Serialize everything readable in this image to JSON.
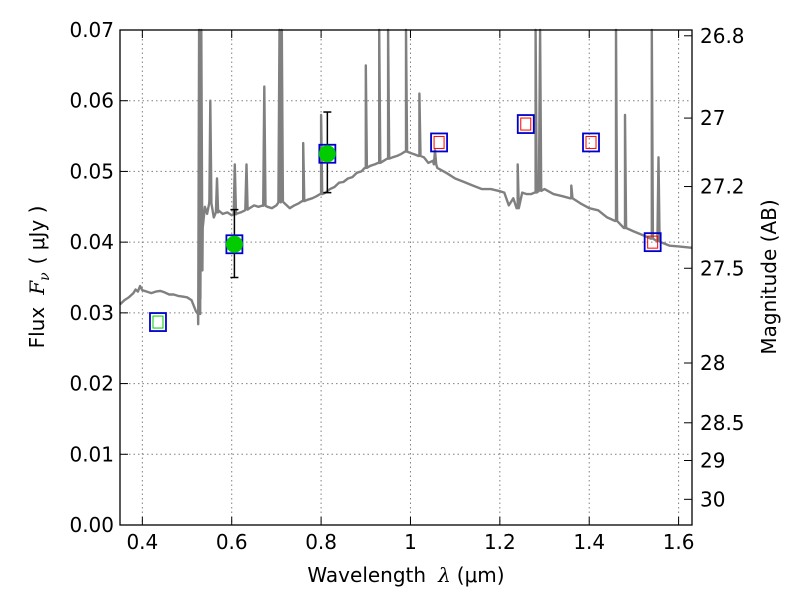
{
  "chart_data": {
    "type": "scatter",
    "xlabel_text": "Wavelength",
    "xlabel_symbol": "λ",
    "xlabel_unit": "(μm)",
    "ylabel_text": "Flux",
    "ylabel_symbol": "F",
    "ylabel_subscript": "ν",
    "ylabel_unit": "( μJy )",
    "y2label": "Magnitude (AB)",
    "xlim": [
      0.35,
      1.63
    ],
    "ylim": [
      0.0,
      0.07
    ],
    "grid": true,
    "x_ticks": [
      {
        "value": 0.4,
        "label": "0.4"
      },
      {
        "value": 0.6,
        "label": "0.6"
      },
      {
        "value": 0.8,
        "label": "0.8"
      },
      {
        "value": 1.0,
        "label": "1"
      },
      {
        "value": 1.2,
        "label": "1.2"
      },
      {
        "value": 1.4,
        "label": "1.4"
      },
      {
        "value": 1.6,
        "label": "1.6"
      }
    ],
    "y_ticks": [
      {
        "value": 0.0,
        "label": "0.00"
      },
      {
        "value": 0.01,
        "label": "0.01"
      },
      {
        "value": 0.02,
        "label": "0.02"
      },
      {
        "value": 0.03,
        "label": "0.03"
      },
      {
        "value": 0.04,
        "label": "0.04"
      },
      {
        "value": 0.05,
        "label": "0.05"
      },
      {
        "value": 0.06,
        "label": "0.06"
      },
      {
        "value": 0.07,
        "label": "0.07"
      }
    ],
    "y2_ticks": [
      {
        "mag": 26.8,
        "label": "26.8"
      },
      {
        "mag": 27.0,
        "label": "27"
      },
      {
        "mag": 27.2,
        "label": "27.2"
      },
      {
        "mag": 27.5,
        "label": "27.5"
      },
      {
        "mag": 28.0,
        "label": "28"
      },
      {
        "mag": 28.5,
        "label": "28.5"
      },
      {
        "mag": 29.0,
        "label": "29"
      },
      {
        "mag": 30.0,
        "label": "30"
      }
    ],
    "colors": {
      "spectrum": "#808080",
      "model_box": "#0000cc",
      "upper_limit": "#ff0000",
      "detection": "#00cc00",
      "errorbar": "#000000",
      "grid": "#808080"
    },
    "spectrum": [
      [
        0.35,
        0.0312
      ],
      [
        0.36,
        0.0318
      ],
      [
        0.37,
        0.0322
      ],
      [
        0.38,
        0.0328
      ],
      [
        0.385,
        0.0333
      ],
      [
        0.39,
        0.033
      ],
      [
        0.395,
        0.0338
      ],
      [
        0.4,
        0.0332
      ],
      [
        0.41,
        0.033
      ],
      [
        0.42,
        0.0328
      ],
      [
        0.43,
        0.033
      ],
      [
        0.44,
        0.0331
      ],
      [
        0.45,
        0.0329
      ],
      [
        0.46,
        0.0326
      ],
      [
        0.47,
        0.0326
      ],
      [
        0.48,
        0.0324
      ],
      [
        0.49,
        0.0323
      ],
      [
        0.5,
        0.0322
      ],
      [
        0.51,
        0.0318
      ],
      [
        0.52,
        0.0302
      ],
      [
        0.525,
        0.0284
      ],
      [
        0.53,
        0.032
      ],
      [
        0.535,
        0.042
      ],
      [
        0.54,
        0.045
      ],
      [
        0.545,
        0.044
      ],
      [
        0.55,
        0.046
      ],
      [
        0.56,
        0.0435
      ],
      [
        0.57,
        0.0445
      ],
      [
        0.58,
        0.044
      ],
      [
        0.59,
        0.0442
      ],
      [
        0.6,
        0.0438
      ],
      [
        0.61,
        0.044
      ],
      [
        0.62,
        0.0442
      ],
      [
        0.63,
        0.0445
      ],
      [
        0.64,
        0.0448
      ],
      [
        0.65,
        0.0452
      ],
      [
        0.66,
        0.045
      ],
      [
        0.67,
        0.0452
      ],
      [
        0.68,
        0.045
      ],
      [
        0.69,
        0.0448
      ],
      [
        0.7,
        0.0452
      ],
      [
        0.71,
        0.0458
      ],
      [
        0.72,
        0.0454
      ],
      [
        0.73,
        0.0448
      ],
      [
        0.74,
        0.0452
      ],
      [
        0.75,
        0.0455
      ],
      [
        0.76,
        0.0458
      ],
      [
        0.77,
        0.046
      ],
      [
        0.78,
        0.0462
      ],
      [
        0.79,
        0.0465
      ],
      [
        0.8,
        0.0468
      ],
      [
        0.81,
        0.047
      ],
      [
        0.82,
        0.0475
      ],
      [
        0.83,
        0.0478
      ],
      [
        0.84,
        0.0484
      ],
      [
        0.85,
        0.0485
      ],
      [
        0.86,
        0.049
      ],
      [
        0.87,
        0.0492
      ],
      [
        0.88,
        0.0498
      ],
      [
        0.89,
        0.05
      ],
      [
        0.9,
        0.0505
      ],
      [
        0.91,
        0.0508
      ],
      [
        0.92,
        0.051
      ],
      [
        0.93,
        0.0512
      ],
      [
        0.94,
        0.0515
      ],
      [
        0.95,
        0.0518
      ],
      [
        0.96,
        0.052
      ],
      [
        0.97,
        0.0522
      ],
      [
        0.98,
        0.0525
      ],
      [
        0.99,
        0.0528
      ],
      [
        1.0,
        0.0526
      ],
      [
        1.01,
        0.0524
      ],
      [
        1.02,
        0.0522
      ],
      [
        1.03,
        0.052
      ],
      [
        1.04,
        0.0512
      ],
      [
        1.05,
        0.0515
      ],
      [
        1.06,
        0.0505
      ],
      [
        1.08,
        0.0498
      ],
      [
        1.1,
        0.049
      ],
      [
        1.12,
        0.0485
      ],
      [
        1.14,
        0.048
      ],
      [
        1.16,
        0.0475
      ],
      [
        1.18,
        0.0475
      ],
      [
        1.2,
        0.0472
      ],
      [
        1.21,
        0.047
      ],
      [
        1.22,
        0.0452
      ],
      [
        1.23,
        0.0462
      ],
      [
        1.24,
        0.0448
      ],
      [
        1.25,
        0.047
      ],
      [
        1.26,
        0.0468
      ],
      [
        1.27,
        0.0468
      ],
      [
        1.28,
        0.047
      ],
      [
        1.3,
        0.0475
      ],
      [
        1.32,
        0.0468
      ],
      [
        1.34,
        0.0465
      ],
      [
        1.36,
        0.0462
      ],
      [
        1.38,
        0.0455
      ],
      [
        1.4,
        0.0448
      ],
      [
        1.42,
        0.0445
      ],
      [
        1.44,
        0.0435
      ],
      [
        1.46,
        0.043
      ],
      [
        1.48,
        0.042
      ],
      [
        1.5,
        0.0415
      ],
      [
        1.52,
        0.041
      ],
      [
        1.54,
        0.0405
      ],
      [
        1.56,
        0.04
      ],
      [
        1.58,
        0.0395
      ],
      [
        1.6,
        0.0394
      ],
      [
        1.63,
        0.0392
      ]
    ],
    "emission_lines": [
      {
        "x": 0.527,
        "peak": 0.07
      },
      {
        "x": 0.532,
        "peak": 0.07
      },
      {
        "x": 0.552,
        "peak": 0.06
      },
      {
        "x": 0.567,
        "peak": 0.049
      },
      {
        "x": 0.607,
        "peak": 0.051
      },
      {
        "x": 0.633,
        "peak": 0.051
      },
      {
        "x": 0.673,
        "peak": 0.062
      },
      {
        "x": 0.707,
        "peak": 0.07
      },
      {
        "x": 0.712,
        "peak": 0.07
      },
      {
        "x": 0.76,
        "peak": 0.054
      },
      {
        "x": 0.8,
        "peak": 0.058
      },
      {
        "x": 0.9,
        "peak": 0.065
      },
      {
        "x": 0.93,
        "peak": 0.07
      },
      {
        "x": 0.95,
        "peak": 0.07
      },
      {
        "x": 0.99,
        "peak": 0.07
      },
      {
        "x": 1.02,
        "peak": 0.061
      },
      {
        "x": 1.055,
        "peak": 0.053
      },
      {
        "x": 1.24,
        "peak": 0.051
      },
      {
        "x": 1.28,
        "peak": 0.07
      },
      {
        "x": 1.29,
        "peak": 0.07
      },
      {
        "x": 1.36,
        "peak": 0.048
      },
      {
        "x": 1.46,
        "peak": 0.07
      },
      {
        "x": 1.48,
        "peak": 0.058
      },
      {
        "x": 1.54,
        "peak": 0.07
      },
      {
        "x": 1.555,
        "peak": 0.052
      }
    ],
    "points": [
      {
        "x": 0.435,
        "y": 0.0287,
        "box": true,
        "upper": "green",
        "detection": false,
        "err": null
      },
      {
        "x": 0.606,
        "y": 0.0397,
        "box": true,
        "upper": null,
        "detection": true,
        "err": [
          0.035,
          0.0446
        ]
      },
      {
        "x": 0.814,
        "y": 0.0525,
        "box": true,
        "upper": null,
        "detection": true,
        "err": [
          0.047,
          0.0584
        ]
      },
      {
        "x": 1.064,
        "y": 0.0541,
        "box": true,
        "upper": "red",
        "detection": false,
        "err": null
      },
      {
        "x": 1.258,
        "y": 0.0567,
        "box": true,
        "upper": "red",
        "detection": false,
        "err": null
      },
      {
        "x": 1.404,
        "y": 0.0541,
        "box": true,
        "upper": "red",
        "detection": false,
        "err": null
      },
      {
        "x": 1.542,
        "y": 0.04,
        "box": true,
        "upper": "red",
        "detection": false,
        "err": null
      }
    ]
  }
}
